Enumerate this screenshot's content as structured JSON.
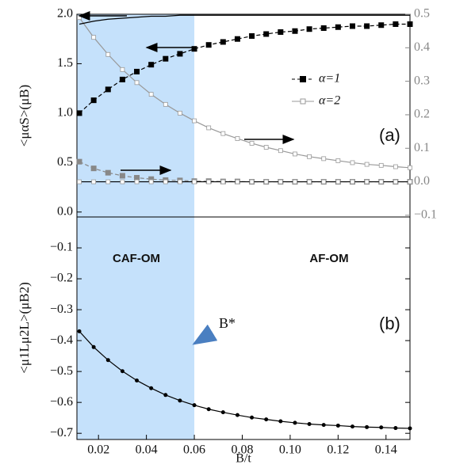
{
  "chart_data": [
    {
      "type": "line",
      "ylabel": "<μαS>(μB)",
      "annotation": "(a)",
      "xlim": [
        0.011,
        0.15
      ],
      "ylim": [
        -0.05,
        2.0
      ],
      "y2lim": [
        -0.105,
        0.5
      ],
      "yticks": [
        {
          "value": 2.0,
          "label": "2.0"
        },
        1.5,
        {
          "value": 1.0,
          "label": "1.0"
        },
        0.5,
        {
          "value": 0.0,
          "label": "0.0"
        }
      ],
      "y2ticks": [
        0.5,
        0.4,
        0.3,
        0.2,
        0.1,
        {
          "value": 0.0,
          "label": "0.0"
        },
        {
          "value": -0.1,
          "label": "−0.1"
        }
      ],
      "shaded_region": [
        0.011,
        0.06
      ],
      "shade_color": "#c5e1fb",
      "x": [
        0.012,
        0.018,
        0.024,
        0.03,
        0.036,
        0.042,
        0.048,
        0.054,
        0.06,
        0.066,
        0.072,
        0.078,
        0.084,
        0.09,
        0.096,
        0.102,
        0.108,
        0.114,
        0.12,
        0.126,
        0.132,
        0.138,
        0.144,
        0.15
      ],
      "series": [
        {
          "name": "α=1",
          "color": "#000000",
          "marker": "square-filled",
          "dash": true,
          "values": [
            1.0,
            1.13,
            1.24,
            1.34,
            1.42,
            1.49,
            1.55,
            1.6,
            1.65,
            1.69,
            1.72,
            1.75,
            1.78,
            1.8,
            1.82,
            1.83,
            1.85,
            1.86,
            1.87,
            1.88,
            1.88,
            1.89,
            1.9,
            1.9
          ]
        },
        {
          "name": "α=2",
          "color": "#999999",
          "marker": "square-open",
          "axis": "y2",
          "values": [
            0.49,
            0.431,
            0.38,
            0.335,
            0.296,
            0.261,
            0.231,
            0.205,
            0.182,
            0.161,
            0.144,
            0.129,
            0.115,
            0.103,
            0.093,
            0.083,
            0.075,
            0.069,
            0.063,
            0.057,
            0.052,
            0.049,
            0.045,
            0.042
          ]
        },
        {
          "color": "#888888",
          "marker": "square-filled",
          "dash": true,
          "axis": "y2",
          "values": [
            0.06,
            0.04,
            0.027,
            0.018,
            0.012,
            0.008,
            0.005,
            0.004,
            0.002,
            0.002,
            0.001,
            0.001,
            0,
            0,
            0,
            0,
            0,
            0,
            0,
            0,
            0,
            0,
            0,
            0
          ]
        },
        {
          "color": "#000000",
          "marker": "none",
          "values": [
            1.9,
            1.93,
            1.95,
            1.96,
            1.97,
            1.98,
            1.98,
            1.99,
            1.99,
            1.99,
            1.99,
            1.99,
            1.99,
            1.99,
            1.99,
            1.99,
            1.99,
            1.99,
            1.99,
            1.99,
            1.99,
            1.99,
            1.99,
            1.99
          ]
        },
        {
          "color": "#000000",
          "marker": "square-open",
          "axis": "y2",
          "values": [
            0,
            0,
            0,
            0,
            0,
            0,
            0,
            0,
            0,
            0,
            0,
            0,
            0,
            0,
            0,
            0,
            0,
            0,
            0,
            0,
            0,
            0,
            0,
            0
          ]
        }
      ]
    },
    {
      "type": "line",
      "ylabel": "<μ1Lμ2L>(μB2)",
      "xlabel": "B/t",
      "annotation": "(b)",
      "region_labels": [
        "CAF-OM",
        "AF-OM"
      ],
      "marker_label": "B*",
      "xlim": [
        0.011,
        0.15
      ],
      "ylim": [
        -0.72,
        0.0
      ],
      "xticks": [
        0.02,
        0.04,
        0.06,
        0.08,
        {
          "value": 0.1,
          "label": "0.10"
        },
        0.12,
        0.14
      ],
      "yticks": [
        {
          "value": -0.1,
          "label": "−0.1"
        },
        {
          "value": -0.2,
          "label": "−0.2"
        },
        {
          "value": -0.3,
          "label": "−0.3"
        },
        {
          "value": -0.4,
          "label": "−0.4"
        },
        {
          "value": -0.5,
          "label": "−0.5"
        },
        {
          "value": -0.6,
          "label": "−0.6"
        },
        {
          "value": -0.7,
          "label": "−0.7"
        }
      ],
      "shaded_region": [
        0.011,
        0.06
      ],
      "shade_color": "#c5e1fb",
      "x": [
        0.012,
        0.018,
        0.024,
        0.03,
        0.036,
        0.042,
        0.048,
        0.054,
        0.06,
        0.066,
        0.072,
        0.078,
        0.084,
        0.09,
        0.096,
        0.102,
        0.108,
        0.114,
        0.12,
        0.126,
        0.132,
        0.138,
        0.144,
        0.15
      ],
      "series": [
        {
          "color": "#000000",
          "marker": "circle",
          "values": [
            -0.37,
            -0.421,
            -0.463,
            -0.499,
            -0.529,
            -0.554,
            -0.576,
            -0.594,
            -0.609,
            -0.622,
            -0.632,
            -0.641,
            -0.649,
            -0.655,
            -0.661,
            -0.666,
            -0.67,
            -0.673,
            -0.675,
            -0.678,
            -0.68,
            -0.681,
            -0.683,
            -0.684
          ]
        }
      ]
    }
  ]
}
